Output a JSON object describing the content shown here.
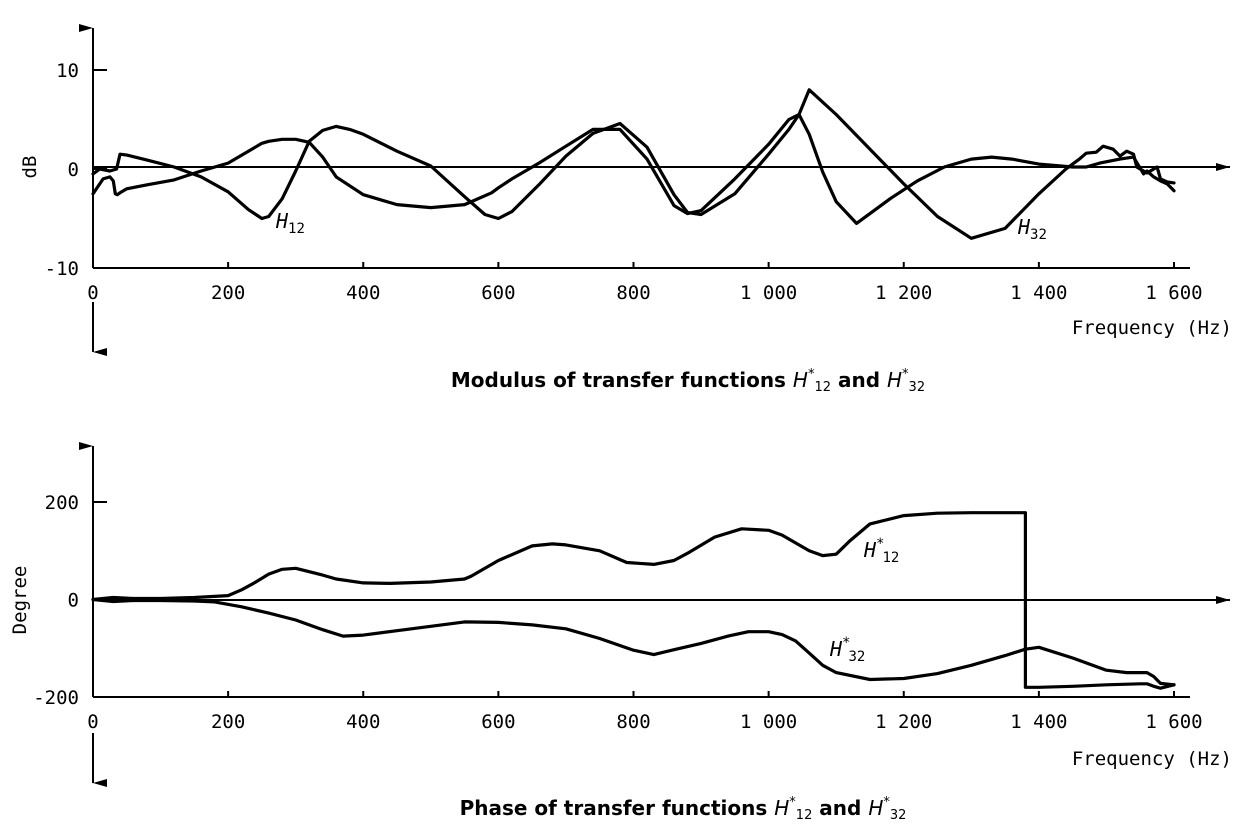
{
  "chart_data": [
    {
      "type": "line",
      "title": "Modulus of transfer functions H*12 and H*32",
      "title_parts": {
        "prefix": "Modulus of transfer functions ",
        "f1": "H",
        "f1_sup": "*",
        "f1_sub": "12",
        "mid": " and ",
        "f2": "H",
        "f2_sup": "*",
        "f2_sub": "32"
      },
      "xlabel": "Frequency (Hz)",
      "ylabel": "dB",
      "xlim": [
        0,
        1600
      ],
      "ylim": [
        -10,
        10
      ],
      "x_ticks": [
        "0",
        "200",
        "400",
        "600",
        "800",
        "1 000",
        "1 200",
        "1 400",
        "1 600"
      ],
      "y_ticks": [
        "10",
        "0",
        "-10"
      ],
      "grid": false,
      "series": [
        {
          "name": "H12",
          "label_parts": {
            "main": "H",
            "sub": "12"
          },
          "x": [
            0,
            15,
            25,
            30,
            33,
            36,
            40,
            50,
            80,
            120,
            160,
            200,
            230,
            250,
            260,
            280,
            300,
            320,
            340,
            360,
            400,
            450,
            500,
            550,
            590,
            600,
            620,
            660,
            700,
            740,
            780,
            820,
            860,
            880,
            900,
            950,
            1000,
            1030,
            1045,
            1060,
            1080,
            1100,
            1130,
            1180,
            1220,
            1260,
            1300,
            1330,
            1360,
            1400,
            1450,
            1470,
            1490,
            1520,
            1540,
            1555,
            1560,
            1570,
            1580,
            1590,
            1600
          ],
          "y": [
            -2.5,
            -1,
            -0.8,
            -1.2,
            -2.5,
            -2.6,
            -2.4,
            -2.0,
            -1.6,
            -1.1,
            -0.2,
            0.6,
            1.8,
            2.6,
            2.8,
            3.0,
            3.0,
            2.7,
            1.2,
            -0.8,
            -2.6,
            -3.6,
            -3.9,
            -3.6,
            -2.4,
            -1.9,
            -1.0,
            0.6,
            2.3,
            4.0,
            4.0,
            1.0,
            -3.7,
            -4.5,
            -4.2,
            -1.0,
            2.5,
            5.0,
            5.5,
            3.5,
            -0.3,
            -3.3,
            -5.5,
            -3.0,
            -1.2,
            0.2,
            1.0,
            1.2,
            1.0,
            0.5,
            0.2,
            0.2,
            0.6,
            1.0,
            1.2,
            -0.5,
            -0.2,
            -0.8,
            -1.2,
            -1.5,
            -2.2
          ]
        },
        {
          "name": "H32",
          "label_parts": {
            "main": "H",
            "sub": "32"
          },
          "x": [
            0,
            10,
            25,
            35,
            40,
            50,
            80,
            120,
            160,
            200,
            230,
            250,
            260,
            280,
            300,
            320,
            340,
            360,
            380,
            400,
            450,
            500,
            550,
            580,
            600,
            620,
            660,
            700,
            740,
            780,
            820,
            860,
            880,
            900,
            950,
            1000,
            1030,
            1045,
            1060,
            1100,
            1150,
            1200,
            1250,
            1300,
            1350,
            1400,
            1440,
            1460,
            1470,
            1485,
            1495,
            1510,
            1520,
            1530,
            1540,
            1545,
            1560,
            1575,
            1580,
            1590,
            1600
          ],
          "y": [
            -0.5,
            0,
            -0.2,
            0,
            1.5,
            1.4,
            0.9,
            0.2,
            -0.8,
            -2.3,
            -4.1,
            -5.0,
            -4.8,
            -3.0,
            -0.2,
            2.8,
            3.9,
            4.3,
            4.0,
            3.5,
            1.8,
            0.3,
            -2.8,
            -4.6,
            -5.0,
            -4.3,
            -1.6,
            1.3,
            3.6,
            4.6,
            2.2,
            -2.6,
            -4.4,
            -4.6,
            -2.5,
            1.5,
            4.0,
            5.5,
            8.0,
            5.5,
            2.0,
            -1.5,
            -4.8,
            -7.0,
            -6.0,
            -2.5,
            0.0,
            1.0,
            1.6,
            1.7,
            2.3,
            2.0,
            1.3,
            1.8,
            1.5,
            0.2,
            -0.4,
            0.2,
            -1.0,
            -1.3,
            -1.4
          ]
        }
      ]
    },
    {
      "type": "line",
      "title": "Phase of transfer functions H*12 and H*32",
      "title_parts": {
        "prefix": "Phase of transfer functions ",
        "f1": "H",
        "f1_sup": "*",
        "f1_sub": "12",
        "mid": " and ",
        "f2": "H",
        "f2_sup": "*",
        "f2_sub": "32"
      },
      "xlabel": "Frequency (Hz)",
      "ylabel": "Degree",
      "xlim": [
        0,
        1600
      ],
      "ylim": [
        -200,
        200
      ],
      "x_ticks": [
        "0",
        "200",
        "400",
        "600",
        "800",
        "1 000",
        "1 200",
        "1 400",
        "1 600"
      ],
      "y_ticks": [
        "200",
        "0",
        "-200"
      ],
      "grid": false,
      "series": [
        {
          "name": "H*12",
          "label_parts": {
            "main": "H",
            "sup": "*",
            "sub": "12"
          },
          "x": [
            0,
            30,
            60,
            100,
            150,
            200,
            220,
            240,
            260,
            280,
            300,
            320,
            340,
            360,
            400,
            440,
            500,
            550,
            560,
            600,
            650,
            680,
            700,
            750,
            790,
            830,
            860,
            880,
            920,
            960,
            1000,
            1020,
            1060,
            1080,
            1100,
            1120,
            1150,
            1200,
            1250,
            1300,
            1380,
            1380.01,
            1400,
            1450,
            1500,
            1550,
            1560,
            1570,
            1580,
            1600
          ],
          "y": [
            0,
            4,
            2,
            2,
            4,
            8,
            20,
            35,
            52,
            62,
            64,
            57,
            50,
            42,
            34,
            33,
            36,
            42,
            48,
            80,
            110,
            114,
            112,
            100,
            76,
            72,
            80,
            95,
            128,
            145,
            142,
            132,
            100,
            90,
            93,
            120,
            155,
            172,
            177,
            178,
            178,
            -180,
            -180,
            -178,
            -175,
            -173,
            -173,
            -178,
            -182,
            -175
          ]
        },
        {
          "name": "H*32",
          "label_parts": {
            "main": "H",
            "sup": "*",
            "sub": "32"
          },
          "x": [
            0,
            30,
            60,
            100,
            150,
            180,
            220,
            260,
            300,
            340,
            370,
            400,
            450,
            500,
            550,
            600,
            650,
            700,
            750,
            800,
            830,
            860,
            900,
            940,
            970,
            1000,
            1020,
            1040,
            1060,
            1080,
            1100,
            1150,
            1200,
            1250,
            1300,
            1350,
            1380,
            1400,
            1450,
            1500,
            1530,
            1560,
            1570,
            1580,
            1600
          ],
          "y": [
            0,
            -4,
            -2,
            -2,
            -3,
            -5,
            -15,
            -28,
            -42,
            -62,
            -75,
            -73,
            -64,
            -55,
            -46,
            -47,
            -52,
            -60,
            -80,
            -104,
            -113,
            -103,
            -90,
            -75,
            -66,
            -66,
            -72,
            -85,
            -110,
            -135,
            -150,
            -164,
            -162,
            -152,
            -135,
            -115,
            -102,
            -98,
            -120,
            -145,
            -150,
            -150,
            -158,
            -172,
            -175
          ]
        }
      ],
      "annotations": [
        {
          "type": "vertical_drop",
          "x": 1380,
          "from": 178,
          "to": -180
        }
      ]
    }
  ]
}
